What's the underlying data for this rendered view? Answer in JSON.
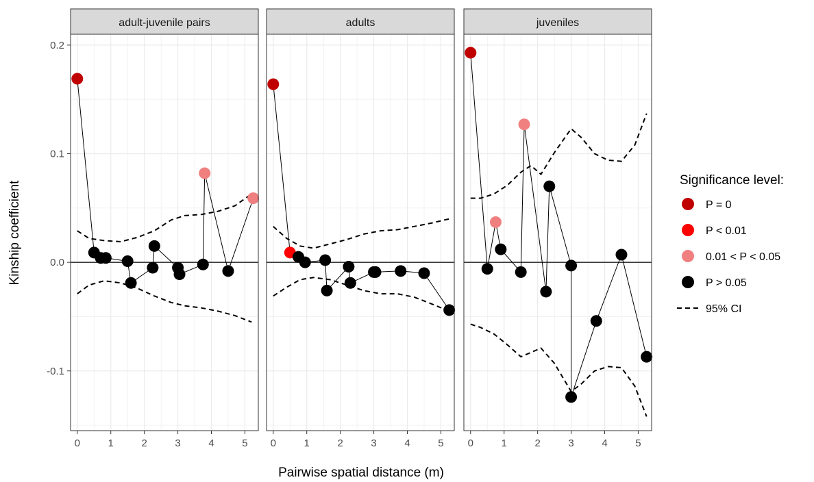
{
  "chart_data": {
    "type": "scatter",
    "xlabel": "Pairwise spatial distance (m)",
    "ylabel": "Kinship coefficient",
    "xlim": [
      -0.2,
      5.4
    ],
    "ylim": [
      -0.155,
      0.21
    ],
    "x_ticks": [
      0,
      1,
      2,
      3,
      4,
      5
    ],
    "y_ticks": [
      -0.1,
      0.0,
      0.1,
      0.2
    ],
    "y_tick_labels": [
      "-0.1",
      "0.0",
      "0.1",
      "0.2"
    ],
    "grid": true,
    "reference_line_y": 0,
    "legend": {
      "title": "Significance level:",
      "position": "right",
      "entries": [
        {
          "key": "p0",
          "label": "P = 0",
          "color": "#c00000"
        },
        {
          "key": "p001",
          "label": "P < 0.01",
          "color": "#ff0000"
        },
        {
          "key": "p005",
          "label": "0.01 < P < 0.05",
          "color": "#f08080"
        },
        {
          "key": "ns",
          "label": "P > 0.05",
          "color": "#000000"
        },
        {
          "key": "ci",
          "label": "95% CI",
          "style": "dashed"
        }
      ]
    },
    "panels": [
      {
        "title": "adult-juvenile pairs",
        "points": [
          {
            "x": 0.0,
            "y": 0.169,
            "sig": "p0"
          },
          {
            "x": 0.5,
            "y": 0.009,
            "sig": "ns"
          },
          {
            "x": 0.7,
            "y": 0.004,
            "sig": "ns"
          },
          {
            "x": 0.85,
            "y": 0.004,
            "sig": "ns"
          },
          {
            "x": 1.5,
            "y": 0.001,
            "sig": "ns"
          },
          {
            "x": 1.6,
            "y": -0.019,
            "sig": "ns"
          },
          {
            "x": 2.25,
            "y": -0.005,
            "sig": "ns"
          },
          {
            "x": 2.3,
            "y": 0.015,
            "sig": "ns"
          },
          {
            "x": 3.0,
            "y": -0.005,
            "sig": "ns"
          },
          {
            "x": 3.05,
            "y": -0.011,
            "sig": "ns"
          },
          {
            "x": 3.75,
            "y": -0.002,
            "sig": "ns"
          },
          {
            "x": 3.8,
            "y": 0.082,
            "sig": "p005"
          },
          {
            "x": 4.5,
            "y": -0.008,
            "sig": "ns"
          },
          {
            "x": 5.25,
            "y": 0.059,
            "sig": "p005"
          }
        ],
        "ci_upper": {
          "x": [
            0.0,
            0.35,
            0.8,
            1.3,
            1.8,
            2.3,
            2.8,
            3.2,
            3.7,
            4.2,
            4.7,
            5.2
          ],
          "y": [
            0.029,
            0.022,
            0.02,
            0.019,
            0.023,
            0.029,
            0.039,
            0.043,
            0.044,
            0.047,
            0.052,
            0.063
          ]
        },
        "ci_lower": {
          "x": [
            0.0,
            0.35,
            0.8,
            1.3,
            1.8,
            2.3,
            2.8,
            3.2,
            3.7,
            4.2,
            4.7,
            5.2
          ],
          "y": [
            -0.029,
            -0.021,
            -0.017,
            -0.019,
            -0.024,
            -0.031,
            -0.037,
            -0.04,
            -0.042,
            -0.045,
            -0.049,
            -0.055
          ]
        }
      },
      {
        "title": "adults",
        "points": [
          {
            "x": 0.0,
            "y": 0.164,
            "sig": "p0"
          },
          {
            "x": 0.5,
            "y": 0.009,
            "sig": "p001"
          },
          {
            "x": 0.75,
            "y": 0.005,
            "sig": "ns"
          },
          {
            "x": 0.95,
            "y": 0.0,
            "sig": "ns"
          },
          {
            "x": 1.55,
            "y": 0.002,
            "sig": "ns"
          },
          {
            "x": 1.6,
            "y": -0.026,
            "sig": "ns"
          },
          {
            "x": 2.25,
            "y": -0.004,
            "sig": "ns"
          },
          {
            "x": 2.3,
            "y": -0.019,
            "sig": "ns"
          },
          {
            "x": 3.0,
            "y": -0.009,
            "sig": "ns"
          },
          {
            "x": 3.05,
            "y": -0.009,
            "sig": "ns"
          },
          {
            "x": 3.8,
            "y": -0.008,
            "sig": "ns"
          },
          {
            "x": 4.5,
            "y": -0.01,
            "sig": "ns"
          },
          {
            "x": 5.25,
            "y": -0.044,
            "sig": "ns"
          }
        ],
        "ci_upper": {
          "x": [
            0.0,
            0.4,
            0.8,
            1.2,
            1.7,
            2.2,
            2.7,
            3.2,
            3.7,
            4.2,
            4.7,
            5.25
          ],
          "y": [
            0.033,
            0.022,
            0.015,
            0.013,
            0.017,
            0.021,
            0.026,
            0.029,
            0.03,
            0.033,
            0.036,
            0.04
          ]
        },
        "ci_lower": {
          "x": [
            0.0,
            0.4,
            0.8,
            1.2,
            1.7,
            2.2,
            2.7,
            3.2,
            3.7,
            4.2,
            4.7,
            5.25
          ],
          "y": [
            -0.031,
            -0.023,
            -0.016,
            -0.014,
            -0.016,
            -0.021,
            -0.026,
            -0.029,
            -0.029,
            -0.032,
            -0.038,
            -0.045
          ]
        }
      },
      {
        "title": "juveniles",
        "points": [
          {
            "x": 0.0,
            "y": 0.193,
            "sig": "p0"
          },
          {
            "x": 0.5,
            "y": -0.006,
            "sig": "ns"
          },
          {
            "x": 0.75,
            "y": 0.037,
            "sig": "p005"
          },
          {
            "x": 0.9,
            "y": 0.012,
            "sig": "ns"
          },
          {
            "x": 1.5,
            "y": -0.009,
            "sig": "ns"
          },
          {
            "x": 1.6,
            "y": 0.127,
            "sig": "p005"
          },
          {
            "x": 2.25,
            "y": -0.027,
            "sig": "ns"
          },
          {
            "x": 2.35,
            "y": 0.07,
            "sig": "ns"
          },
          {
            "x": 3.0,
            "y": -0.003,
            "sig": "ns"
          },
          {
            "x": 3.0,
            "y": -0.124,
            "sig": "ns"
          },
          {
            "x": 3.75,
            "y": -0.054,
            "sig": "ns"
          },
          {
            "x": 4.5,
            "y": 0.007,
            "sig": "ns"
          },
          {
            "x": 5.25,
            "y": -0.087,
            "sig": "ns"
          }
        ],
        "ci_upper": {
          "x": [
            0.0,
            0.3,
            0.7,
            1.1,
            1.5,
            1.8,
            2.1,
            2.5,
            3.0,
            3.3,
            3.7,
            4.1,
            4.5,
            4.9,
            5.25
          ],
          "y": [
            0.059,
            0.059,
            0.063,
            0.071,
            0.083,
            0.089,
            0.081,
            0.101,
            0.123,
            0.115,
            0.1,
            0.094,
            0.093,
            0.108,
            0.137
          ]
        },
        "ci_lower": {
          "x": [
            0.0,
            0.3,
            0.7,
            1.1,
            1.5,
            1.8,
            2.1,
            2.5,
            3.0,
            3.3,
            3.7,
            4.1,
            4.5,
            4.9,
            5.25
          ],
          "y": [
            -0.057,
            -0.06,
            -0.066,
            -0.076,
            -0.087,
            -0.083,
            -0.079,
            -0.093,
            -0.119,
            -0.112,
            -0.1,
            -0.096,
            -0.097,
            -0.114,
            -0.142
          ]
        }
      }
    ]
  }
}
